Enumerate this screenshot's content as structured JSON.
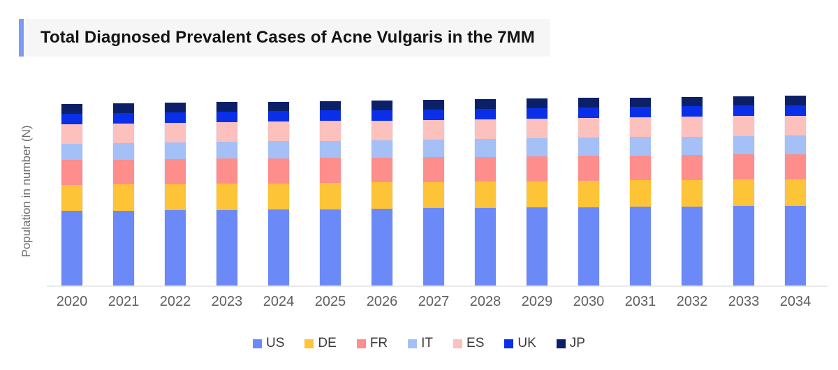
{
  "title": {
    "text": "Total Diagnosed Prevalent Cases of Acne Vulgaris in the 7MM"
  },
  "accent_color": "#7d9bf5",
  "chart_data": {
    "type": "bar",
    "stacked": true,
    "title": "Total Diagnosed Prevalent Cases of Acne Vulgaris in the 7MM",
    "xlabel": "",
    "ylabel": "Population in number (N)",
    "y_axis_numeric_labels_shown": false,
    "grid": false,
    "legend_position": "bottom",
    "units": "relative height units (no numeric axis ticks shown in chart)",
    "ylim": [
      0,
      300
    ],
    "categories": [
      "2020",
      "2021",
      "2022",
      "2023",
      "2024",
      "2025",
      "2026",
      "2027",
      "2028",
      "2029",
      "2030",
      "2031",
      "2032",
      "2033",
      "2034"
    ],
    "series": [
      {
        "name": "US",
        "color": "#6b89f7",
        "values": [
          106.7,
          107.2,
          107.8,
          108.3,
          108.9,
          109.4,
          110.0,
          110.5,
          111.0,
          111.6,
          112.1,
          112.7,
          113.2,
          113.8,
          114.3
        ]
      },
      {
        "name": "DE",
        "color": "#fec438",
        "values": [
          37.3,
          37.4,
          37.4,
          37.5,
          37.5,
          37.6,
          37.6,
          37.7,
          37.7,
          37.8,
          37.8,
          37.9,
          37.9,
          38.0,
          38.0
        ]
      },
      {
        "name": "FR",
        "color": "#fd8e8c",
        "values": [
          35.7,
          35.7,
          35.7,
          35.7,
          35.7,
          35.7,
          35.7,
          35.7,
          35.7,
          35.7,
          35.7,
          35.7,
          35.7,
          35.7,
          35.7
        ]
      },
      {
        "name": "IT",
        "color": "#a4c0f6",
        "values": [
          23.3,
          23.6,
          23.8,
          24.1,
          24.4,
          24.6,
          24.9,
          25.2,
          25.4,
          25.7,
          26.0,
          26.2,
          26.5,
          26.8,
          27.0
        ]
      },
      {
        "name": "ES",
        "color": "#fcc0bd",
        "values": [
          28.3,
          28.3,
          28.3,
          28.3,
          28.3,
          28.3,
          28.3,
          28.3,
          28.3,
          28.3,
          28.3,
          28.3,
          28.3,
          28.3,
          28.3
        ]
      },
      {
        "name": "UK",
        "color": "#0a2fe8",
        "values": [
          15.0,
          15.0,
          15.0,
          15.0,
          15.0,
          15.0,
          15.0,
          15.0,
          15.0,
          15.0,
          15.0,
          15.0,
          15.0,
          15.0,
          15.0
        ]
      },
      {
        "name": "JP",
        "color": "#0c2068",
        "values": [
          13.7,
          13.7,
          13.7,
          13.7,
          13.7,
          13.7,
          13.7,
          13.7,
          13.7,
          13.7,
          13.7,
          13.7,
          13.7,
          13.7,
          13.7
        ]
      }
    ]
  }
}
